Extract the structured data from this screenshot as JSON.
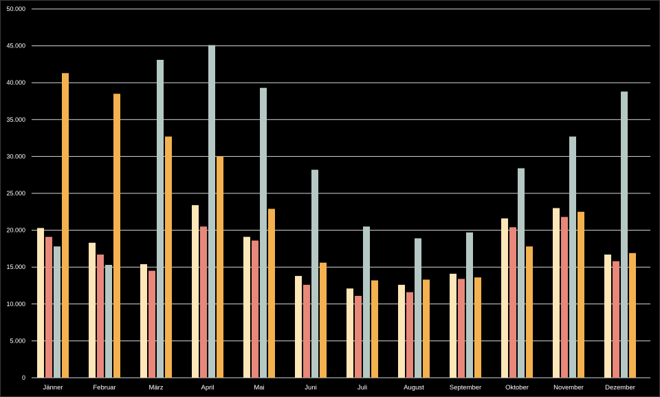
{
  "chart_data": {
    "type": "bar",
    "title": "",
    "xlabel": "",
    "ylabel": "",
    "ylim": [
      0,
      50000
    ],
    "y_ticks": [
      "0",
      "5.000",
      "10.000",
      "15.000",
      "20.000",
      "25.000",
      "30.000",
      "35.000",
      "40.000",
      "45.000",
      "50.000"
    ],
    "y_tick_values": [
      0,
      5000,
      10000,
      15000,
      20000,
      25000,
      30000,
      35000,
      40000,
      45000,
      50000
    ],
    "grid": true,
    "legend": "none",
    "categories": [
      "Jänner",
      "Februar",
      "März",
      "April",
      "Mai",
      "Juni",
      "Juli",
      "August",
      "September",
      "Oktober",
      "November",
      "Dezember"
    ],
    "series": [
      {
        "color": "#fde6b8",
        "values": [
          20300,
          18300,
          15400,
          23400,
          19100,
          13800,
          12100,
          12600,
          14100,
          21600,
          23000,
          16700
        ]
      },
      {
        "color": "#e8887a",
        "values": [
          19100,
          16700,
          14500,
          20500,
          18600,
          12600,
          11100,
          11600,
          13400,
          20400,
          21800,
          15800
        ]
      },
      {
        "color": "#b6c8c4",
        "values": [
          17800,
          15300,
          43100,
          45100,
          39300,
          28200,
          20500,
          18900,
          19700,
          28400,
          32700,
          38800
        ]
      },
      {
        "color": "#f3b14f",
        "values": [
          41300,
          38500,
          32700,
          30000,
          22900,
          15600,
          13200,
          13300,
          13600,
          17800,
          22500,
          16900
        ]
      }
    ]
  }
}
